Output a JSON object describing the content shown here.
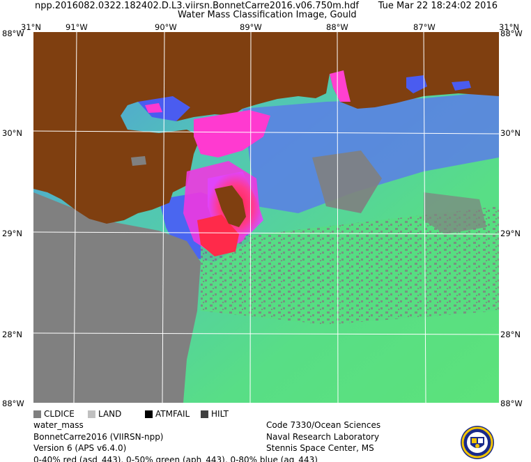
{
  "header": {
    "filename": "npp.2016082.0322.182402.D.L3.viirsn.BonnetCarre2016.v06.750m.hdf",
    "date": "Tue Mar 22 18:24:02 2016",
    "title": "Water Mass Classification Image, Gould"
  },
  "axes": {
    "top_labels": [
      "31°N",
      "91°W",
      "90°W",
      "89°W",
      "88°W",
      "87°W",
      "31°N"
    ],
    "bottom_labels": [
      "88°W",
      "88°W"
    ],
    "left_labels": [
      "88°W",
      "30°N",
      "29°N",
      "28°N",
      "88°W"
    ],
    "right_labels": [
      "88°W",
      "30°N",
      "29°N",
      "28°N",
      "88°W"
    ]
  },
  "legend": [
    {
      "label": "CLDICE",
      "color": "#7f7f7f"
    },
    {
      "label": "LAND",
      "color": "#c0c0c0"
    },
    {
      "label": "ATMFAIL",
      "color": "#000000"
    },
    {
      "label": "HILT",
      "color": "#3f3f3f"
    }
  ],
  "info_left": {
    "product": "water_mass",
    "dataset": "BonnetCarre2016 (VIIRSN-npp)",
    "version": "Version 6 (APS v6.4.0)",
    "scaling": "0-40% red (asd_443), 0-50% green (aph_443), 0-80% blue (ag_443)"
  },
  "info_right": {
    "code": "Code 7330/Ocean Sciences",
    "lab": "Naval Research Laboratory",
    "location": "Stennis Space Center, MS"
  },
  "colors": {
    "land": "#7f3f10",
    "cloud": "#808080",
    "ocean_green": "#56e07e",
    "ocean_blue": "#4a6cf0",
    "plume_magenta": "#ff3ad0",
    "plume_red": "#ff2a4a",
    "grid": "#ffffff"
  }
}
